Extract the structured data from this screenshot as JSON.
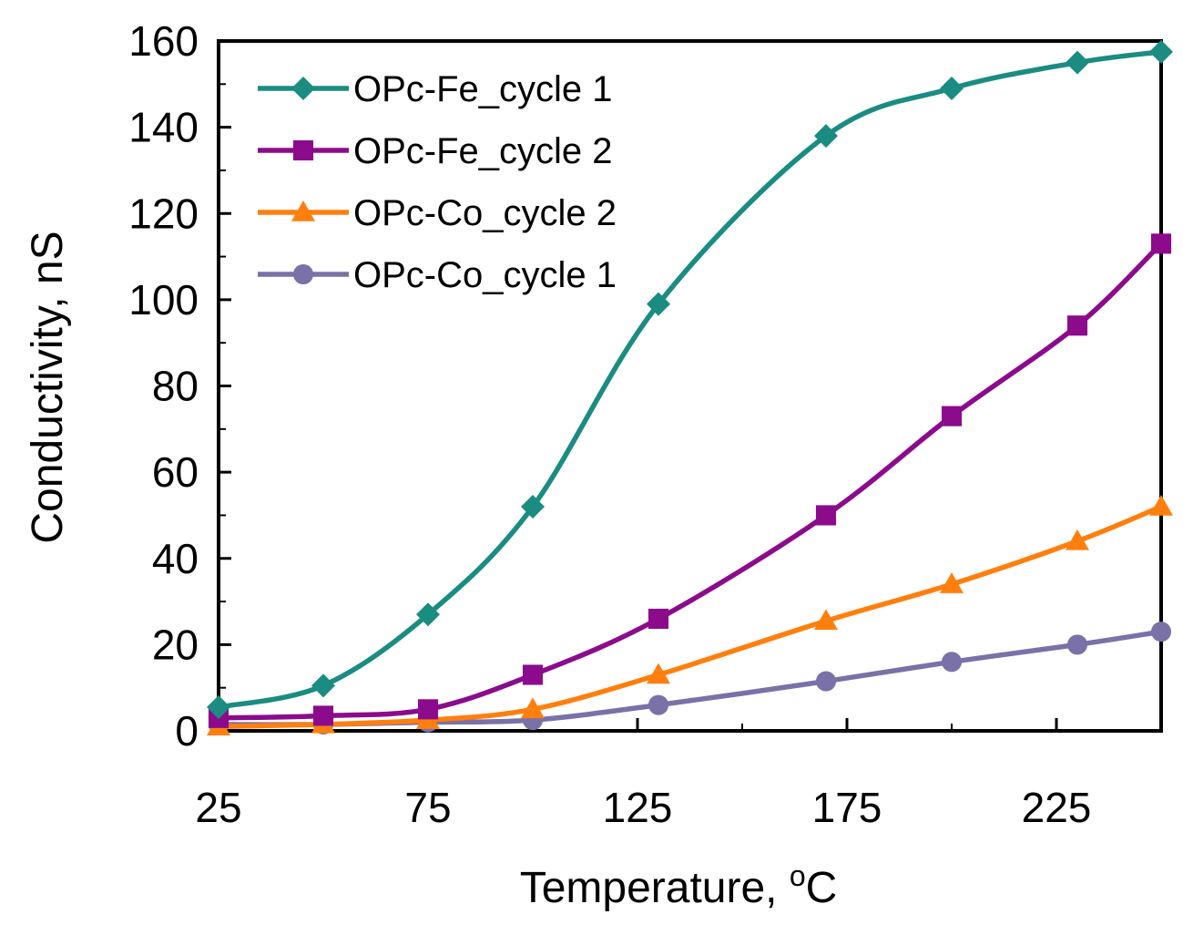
{
  "chart_data": {
    "type": "line",
    "title": "",
    "xlabel": "Temperature, ",
    "xlabel_unit_sup": "o",
    "xlabel_unit": "C",
    "ylabel": "Conductivity, nS",
    "xlim": [
      25,
      250
    ],
    "ylim": [
      0,
      160
    ],
    "xticks": [
      25,
      75,
      125,
      175,
      225
    ],
    "yticks": [
      0,
      20,
      40,
      60,
      80,
      100,
      120,
      140,
      160
    ],
    "legend_position": "top-left",
    "grid": false,
    "series": [
      {
        "name": "OPc-Fe_cycle 1",
        "color": "#1a8c82",
        "marker": "diamond",
        "x": [
          25,
          50,
          75,
          100,
          130,
          170,
          200,
          230,
          250
        ],
        "values": [
          5.5,
          10.5,
          27,
          52,
          99,
          138,
          149,
          155,
          157.5
        ]
      },
      {
        "name": "OPc-Fe_cycle 2",
        "color": "#8c0b8c",
        "marker": "square",
        "x": [
          25,
          50,
          75,
          100,
          130,
          170,
          200,
          230,
          250
        ],
        "values": [
          3,
          3.5,
          5,
          13,
          26,
          50,
          73,
          94,
          113
        ]
      },
      {
        "name": "OPc-Co_cycle 2",
        "color": "#ff7f0e",
        "marker": "triangle",
        "x": [
          25,
          50,
          75,
          100,
          130,
          170,
          200,
          230,
          250
        ],
        "values": [
          1,
          1.5,
          2.5,
          5,
          13,
          25.5,
          34,
          44,
          52
        ]
      },
      {
        "name": "OPc-Co_cycle 1",
        "color": "#7a71a8",
        "marker": "circle",
        "x": [
          25,
          50,
          75,
          100,
          130,
          170,
          200,
          230,
          250
        ],
        "values": [
          1.5,
          1.5,
          2,
          2.5,
          6,
          11.5,
          16,
          20,
          23
        ]
      }
    ]
  }
}
